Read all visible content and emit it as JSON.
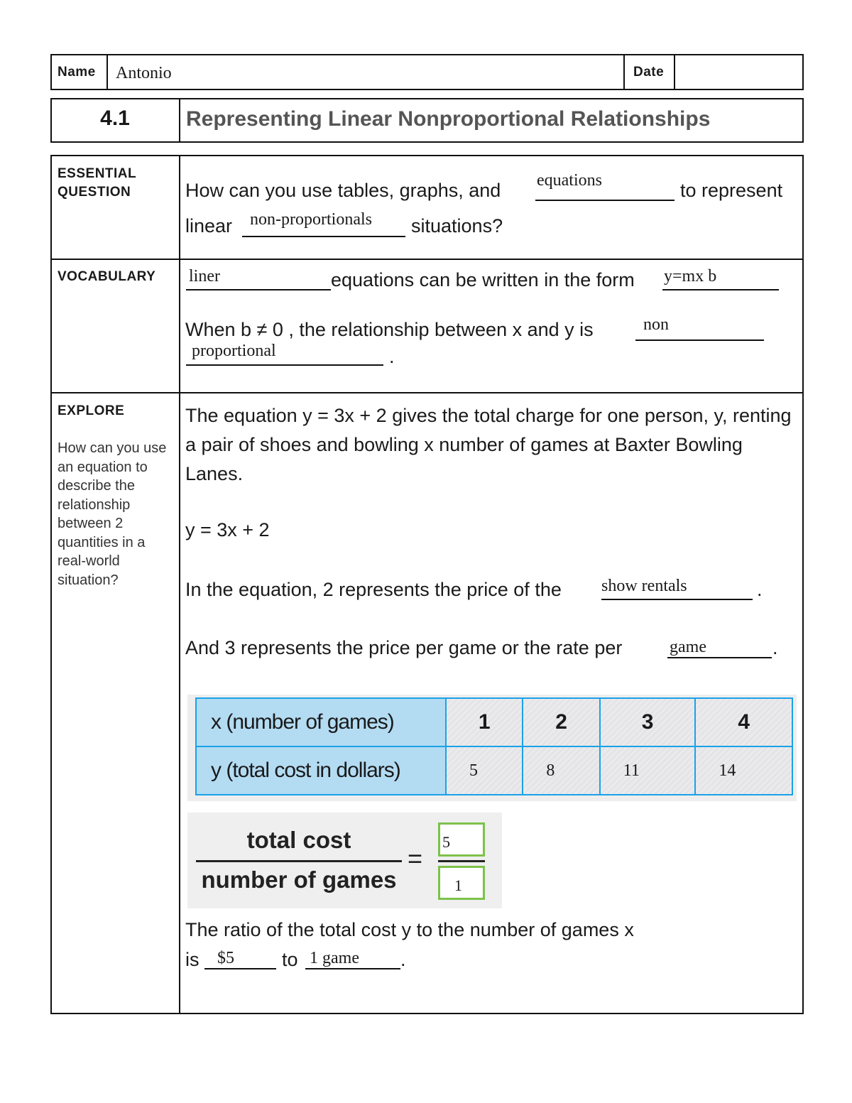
{
  "header": {
    "name_label": "Name",
    "name_value": "Antonio",
    "date_label": "Date",
    "date_value": ""
  },
  "lesson": {
    "number": "4.1",
    "title": "Representing Linear Nonproportional Relationships"
  },
  "essential": {
    "label": "ESSENTIAL QUESTION",
    "text1": "How can you use tables, graphs, and",
    "answer1": "equations",
    "text2": "to represent",
    "text3": "linear",
    "answer2": "non-proportionals",
    "text4": "situations?"
  },
  "vocabulary": {
    "label": "VOCABULARY",
    "answer1": "liner",
    "text1": "equations can be written in the form",
    "answer2": "y=mx b",
    "text2": "When b ≠ 0 , the relationship between x and y is",
    "answer3a": "non",
    "answer3b": "proportional",
    "end": "."
  },
  "explore": {
    "label": "EXPLORE",
    "side_question": "How can you use an equation to describe the relationship between 2 quantities in a real-world situation?",
    "para": "The equation y = 3x + 2 gives the total charge for one person, y, renting a pair of shoes and bowling x number of games at Baxter Bowling Lanes.",
    "equation": "y = 3x + 2",
    "q1": "In the equation, 2 represents the price of the",
    "a1": "show rentals",
    "q1_end": ".",
    "q2": "And 3 represents the price per game or the rate per",
    "a2": "game",
    "q2_end": ".",
    "table": {
      "x_header": "x (number of games)",
      "y_header": "y (total cost in dollars)",
      "x_values": [
        "1",
        "2",
        "3",
        "4"
      ],
      "y_values": [
        "5",
        "8",
        "11",
        "14"
      ],
      "header_color": "#b3dcf3",
      "border_color": "#1aa2e8"
    },
    "fraction": {
      "numerator": "total cost",
      "denominator": "number of games",
      "equals": "=",
      "top_answer": "5",
      "bottom_answer": "1",
      "box_color": "#7dc24a"
    },
    "ratio_text": "The ratio of the total cost y to the number of games x",
    "ratio_is": "is",
    "ratio_a1": "$5",
    "ratio_to": "to",
    "ratio_a2": "1 game",
    "ratio_end": "."
  }
}
